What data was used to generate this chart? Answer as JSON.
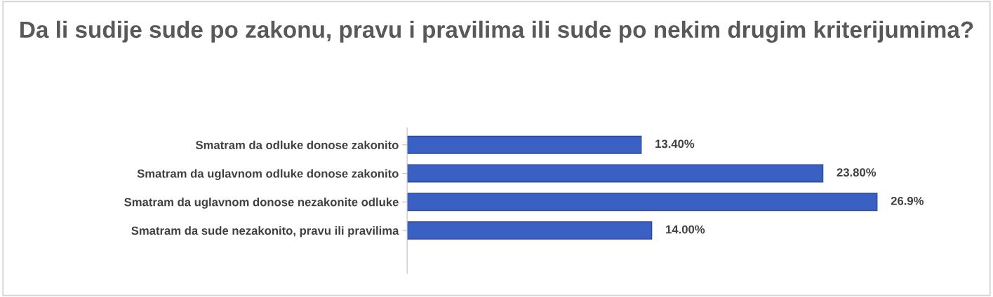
{
  "chart_data": {
    "type": "bar",
    "orientation": "horizontal",
    "title": "Da li sudije sude po zakonu, pravu i pravilima ili sude po nekim drugim kriterijumima?",
    "categories": [
      "Smatram da odluke donose zakonito",
      "Smatram da uglavnom odluke donose zakonito",
      "Smatram da uglavnom donose nezakonite odluke",
      "Smatram da sude nezakonito, pravu ili pravilima"
    ],
    "values": [
      13.4,
      23.8,
      26.9,
      14.0
    ],
    "value_labels": [
      "13.40%",
      "23.80%",
      "26.9%",
      "14.00%"
    ],
    "color": "#3b60c4",
    "grid": false,
    "legend": false,
    "tick_labels": "y"
  }
}
